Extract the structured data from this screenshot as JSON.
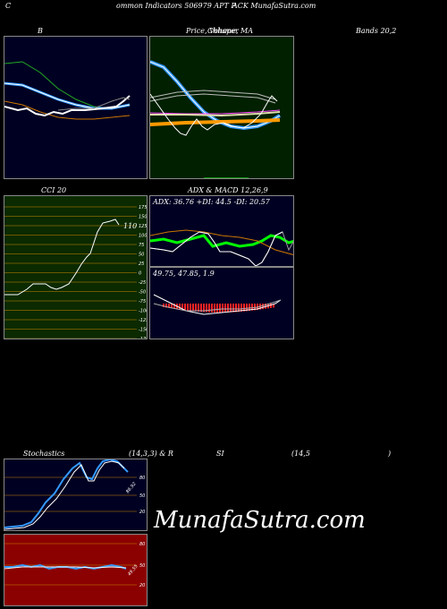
{
  "header": {
    "title_left": "C",
    "title_mid": "ommon  Indicators 506979 APT P",
    "title_right": "ACK MunafaSutra.com"
  },
  "row1": {
    "label_b": "B",
    "label_price": "Price,  Volume,  MA",
    "label_overlap": "Chhaper",
    "label_bands": "Bands 20,2"
  },
  "row2": {
    "label_cci": "CCI 20",
    "label_adx": "ADX  & MACD 12,26,9",
    "cci_value": "110",
    "cci_ticks": [
      "175",
      "150",
      "125",
      "100",
      "75",
      "50",
      "25",
      "0",
      "-25",
      "-50",
      "-75",
      "-100",
      "-125",
      "-150",
      "-175"
    ],
    "adx_readout": "ADX: 36.76  +DI: 44.5 -DI: 20.57",
    "macd_readout": "49.75,  47.85,  1.9"
  },
  "row3": {
    "label_stoch": "Stochastics",
    "label_params": "(14,3,3) & R",
    "label_si": "SI",
    "label_rsi_params": "(14,5",
    "label_close": ")",
    "stoch_ticks": [
      "80",
      "50",
      "20"
    ],
    "stoch_value": "86.92",
    "rsi_ticks": [
      "80",
      "50",
      "20"
    ],
    "rsi_value": "49.55"
  },
  "watermark": "MunafaSutra.com",
  "colors": {
    "navy": "#000022",
    "dark_green": "#002000",
    "cci_green": "#0b2a00",
    "red": "#8b0000",
    "blue_line": "#3399ff",
    "bright_green": "#00ff00",
    "orange": "#ff9900"
  }
}
